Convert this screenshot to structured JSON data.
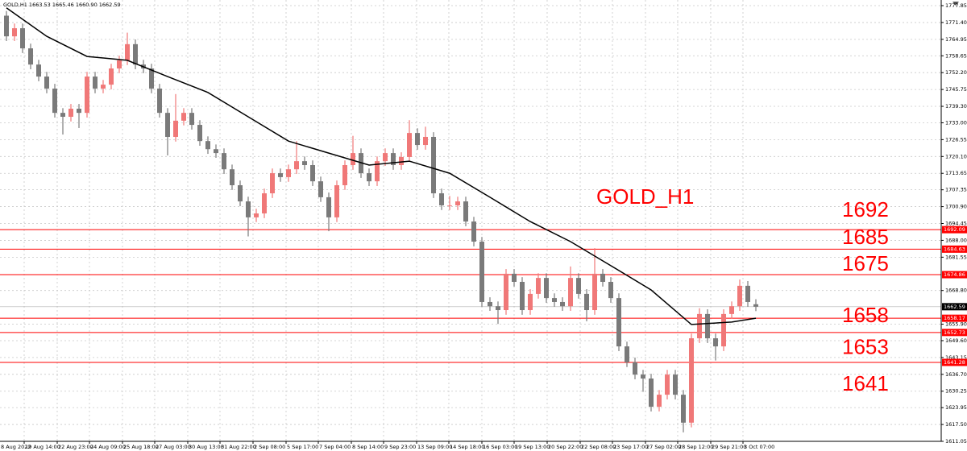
{
  "chart_data": {
    "type": "candlestick",
    "title": "GOLD,H1  1663.53 1665.46 1660.90 1662.59",
    "annotation": "GOLD_H1",
    "up_color": "#f07878",
    "down_color": "#7a7a7a",
    "ma_color": "#000000",
    "level_color": "#ff0000",
    "grid": true,
    "ylim": [
      1611.05,
      1777.85
    ],
    "yticks": [
      1777.85,
      {
        "value": 1771.4,
        "label": "1771.40"
      },
      1764.95,
      1758.65,
      {
        "value": 1752.2,
        "label": "1752.20"
      },
      1745.75,
      {
        "value": 1739.3,
        "label": "1739.30"
      },
      {
        "value": 1733,
        "label": "1733.00"
      },
      1726.55,
      {
        "value": 1720.1,
        "label": "1720.10"
      },
      1713.65,
      1707.35,
      {
        "value": 1700.9,
        "label": "1700.90"
      },
      1694.45,
      {
        "value": 1688,
        "label": "1688.00"
      },
      1681.55,
      {
        "value": 1668.8,
        "label": "1668.80"
      },
      {
        "value": 1655.9,
        "label": "1655.90"
      },
      {
        "value": 1649.6,
        "label": "1649.60"
      },
      1643.15,
      {
        "value": 1636.7,
        "label": "1636.70"
      },
      1630.25,
      1623.95,
      {
        "value": 1617.5,
        "label": "1617.50"
      },
      1611.05
    ],
    "xticks": [
      {
        "value": -1.9,
        "label": "8 Aug 2022"
      },
      {
        "value": 2.2,
        "label": "19 Aug 14:00"
      },
      {
        "value": 6.3,
        "label": "22 Aug 23:00"
      },
      {
        "value": 10.3,
        "label": "24 Aug 09:00"
      },
      {
        "value": 14.4,
        "label": "25 Aug 18:00"
      },
      {
        "value": 18.4,
        "label": "27 Aug 03:00"
      },
      {
        "value": 22.5,
        "label": "30 Aug 13:00"
      },
      {
        "value": 26.5,
        "label": "31 Aug 22:00"
      },
      {
        "value": 30.6,
        "label": "2 Sep 08:00"
      },
      {
        "value": 34.7,
        "label": "5 Sep 17:00"
      },
      {
        "value": 38.7,
        "label": "7 Sep 04:00"
      },
      {
        "value": 42.8,
        "label": "8 Sep 14:00"
      },
      {
        "value": 46.8,
        "label": "9 Sep 23:00"
      },
      {
        "value": 50.9,
        "label": "13 Sep 09:00"
      },
      {
        "value": 54.9,
        "label": "14 Sep 18:00"
      },
      {
        "value": 59.0,
        "label": "16 Sep 03:00"
      },
      {
        "value": 63.0,
        "label": "19 Sep 13:00"
      },
      {
        "value": 67.1,
        "label": "20 Sep 22:00"
      },
      {
        "value": 71.2,
        "label": "22 Sep 08:00"
      },
      {
        "value": 75.2,
        "label": "23 Sep 17:00"
      },
      {
        "value": 79.3,
        "label": "27 Sep 02:00"
      },
      {
        "value": 83.3,
        "label": "28 Sep 12:00"
      },
      {
        "value": 87.4,
        "label": "29 Sep 21:00"
      },
      {
        "value": 91.4,
        "label": "3 Oct 07:00"
      }
    ],
    "open": [
      1774.0,
      1766.1,
      1769.2,
      1761.5,
      1755.3,
      1750.7,
      1746.1,
      1736.8,
      1735.3,
      1738.4,
      1736.8,
      1750.7,
      1746.1,
      1747.6,
      1753.8,
      1756.9,
      1763.1,
      1755.3,
      1753.8,
      1746.1,
      1736.8,
      1727.6,
      1733.8,
      1736.8,
      1732.2,
      1726.0,
      1722.9,
      1721.4,
      1715.2,
      1709.1,
      1702.9,
      1696.8,
      1698.3,
      1706.0,
      1713.7,
      1712.2,
      1715.2,
      1718.3,
      1716.8,
      1710.6,
      1704.5,
      1696.8,
      1709.1,
      1716.8,
      1721.4,
      1713.7,
      1710.6,
      1718.3,
      1721.4,
      1716.8,
      1719.9,
      1729.1,
      1724.5,
      1727.6,
      1706.0,
      1701.4,
      1701.4,
      1702.9,
      1695.2,
      1687.5,
      1664.4,
      1662.8,
      1661.3,
      1675.2,
      1672.1,
      1661.3,
      1667.5,
      1673.6,
      1665.9,
      1664.4,
      1662.8,
      1673.6,
      1667.5,
      1661.3,
      1675.2,
      1672.1,
      1665.9,
      1647.4,
      1641.3,
      1636.6,
      1635.1,
      1624.3,
      1628.9,
      1636.6,
      1628.9,
      1618.2,
      1650.5,
      1659.8,
      1650.5,
      1647.4,
      1659.8,
      1662.8,
      1670.6,
      1663.53
    ],
    "high": [
      1775.8,
      1771.0,
      1771.0,
      1763.3,
      1757.1,
      1752.5,
      1747.9,
      1738.6,
      1740.2,
      1740.2,
      1752.5,
      1752.5,
      1749.4,
      1755.6,
      1758.7,
      1767.5,
      1764.9,
      1757.1,
      1755.6,
      1747.9,
      1738.6,
      1744.0,
      1738.6,
      1738.6,
      1734.0,
      1727.8,
      1724.7,
      1723.2,
      1717.0,
      1710.9,
      1704.7,
      1700.1,
      1707.8,
      1715.5,
      1715.5,
      1717.0,
      1726.0,
      1720.1,
      1718.6,
      1712.4,
      1706.3,
      1710.9,
      1718.6,
      1728.0,
      1723.2,
      1715.5,
      1720.1,
      1723.2,
      1723.2,
      1721.7,
      1734.0,
      1730.9,
      1731.5,
      1729.4,
      1707.8,
      1705.0,
      1704.7,
      1704.7,
      1697.0,
      1689.3,
      1666.2,
      1664.6,
      1677.0,
      1677.0,
      1673.9,
      1669.3,
      1675.4,
      1675.4,
      1667.7,
      1666.2,
      1678.0,
      1675.4,
      1669.3,
      1685.0,
      1677.0,
      1673.9,
      1667.7,
      1649.2,
      1643.1,
      1638.4,
      1636.9,
      1630.7,
      1638.4,
      1638.4,
      1630.7,
      1652.3,
      1662.0,
      1661.6,
      1652.3,
      1661.6,
      1664.6,
      1673.0,
      1672.4,
      1665.46
    ],
    "low": [
      1764.3,
      1764.3,
      1759.7,
      1753.5,
      1748.9,
      1744.3,
      1735.0,
      1728.5,
      1733.5,
      1731.0,
      1735.0,
      1744.3,
      1744.3,
      1745.8,
      1752.0,
      1755.1,
      1753.5,
      1752.0,
      1744.3,
      1735.0,
      1720.5,
      1725.8,
      1732.0,
      1730.4,
      1724.2,
      1721.1,
      1719.6,
      1713.4,
      1707.3,
      1701.1,
      1689.5,
      1695.0,
      1696.5,
      1704.2,
      1710.4,
      1710.4,
      1713.4,
      1715.0,
      1708.8,
      1702.7,
      1691.5,
      1695.0,
      1707.3,
      1715.0,
      1711.9,
      1708.8,
      1708.8,
      1716.5,
      1715.0,
      1715.0,
      1718.1,
      1722.7,
      1722.7,
      1704.2,
      1699.6,
      1699.6,
      1699.6,
      1693.4,
      1685.7,
      1662.6,
      1661.0,
      1656.0,
      1659.5,
      1670.3,
      1659.5,
      1659.5,
      1665.7,
      1664.1,
      1662.6,
      1661.0,
      1661.0,
      1665.7,
      1657.0,
      1659.5,
      1670.3,
      1664.1,
      1645.6,
      1639.5,
      1634.8,
      1630.0,
      1622.5,
      1622.5,
      1627.1,
      1627.1,
      1614.5,
      1616.4,
      1648.7,
      1648.7,
      1642.0,
      1645.6,
      1658.0,
      1661.0,
      1662.6,
      1660.9
    ],
    "close": [
      1766.1,
      1769.2,
      1761.5,
      1755.3,
      1750.7,
      1746.1,
      1736.8,
      1735.3,
      1738.4,
      1736.8,
      1750.7,
      1746.1,
      1747.6,
      1753.8,
      1756.9,
      1763.1,
      1755.3,
      1753.8,
      1746.1,
      1736.8,
      1727.6,
      1733.8,
      1736.8,
      1732.2,
      1726.0,
      1722.9,
      1721.4,
      1715.2,
      1709.1,
      1702.9,
      1696.8,
      1698.3,
      1706.0,
      1713.7,
      1712.2,
      1715.2,
      1718.3,
      1716.8,
      1710.6,
      1704.5,
      1696.8,
      1709.1,
      1716.8,
      1721.4,
      1713.7,
      1710.6,
      1718.3,
      1721.4,
      1716.8,
      1719.9,
      1729.1,
      1724.5,
      1727.6,
      1706.0,
      1701.4,
      1701.4,
      1702.9,
      1695.2,
      1687.5,
      1664.4,
      1662.8,
      1661.3,
      1675.2,
      1672.1,
      1661.3,
      1667.5,
      1673.6,
      1665.9,
      1664.4,
      1662.8,
      1673.6,
      1667.5,
      1661.3,
      1675.2,
      1672.1,
      1665.9,
      1647.4,
      1641.3,
      1636.6,
      1635.1,
      1624.3,
      1628.9,
      1636.6,
      1628.9,
      1618.2,
      1650.5,
      1659.8,
      1650.5,
      1647.4,
      1659.8,
      1662.8,
      1670.6,
      1664.4,
      1662.59
    ],
    "ma": {
      "x": [
        0,
        5,
        10,
        15,
        20,
        25,
        30,
        35,
        40,
        45,
        50,
        55,
        60,
        65,
        70,
        75,
        80,
        85,
        90,
        93
      ],
      "values": [
        1777.0,
        1766.1,
        1758.4,
        1756.9,
        1750.7,
        1744.6,
        1735.3,
        1726.0,
        1721.4,
        1716.8,
        1718.3,
        1713.7,
        1704.5,
        1695.2,
        1687.5,
        1678.3,
        1669.0,
        1655.8,
        1656.7,
        1658.2
      ]
    },
    "levels": [
      {
        "value": 1692.09,
        "label": "1692"
      },
      {
        "value": 1684.63,
        "label": "1685"
      },
      {
        "value": 1674.86,
        "label": "1675"
      },
      {
        "value": 1658.17,
        "label": "1658"
      },
      {
        "value": 1652.73,
        "label": "1653"
      },
      {
        "value": 1641.28,
        "label": "1641"
      }
    ],
    "current_price": 1662.59
  }
}
